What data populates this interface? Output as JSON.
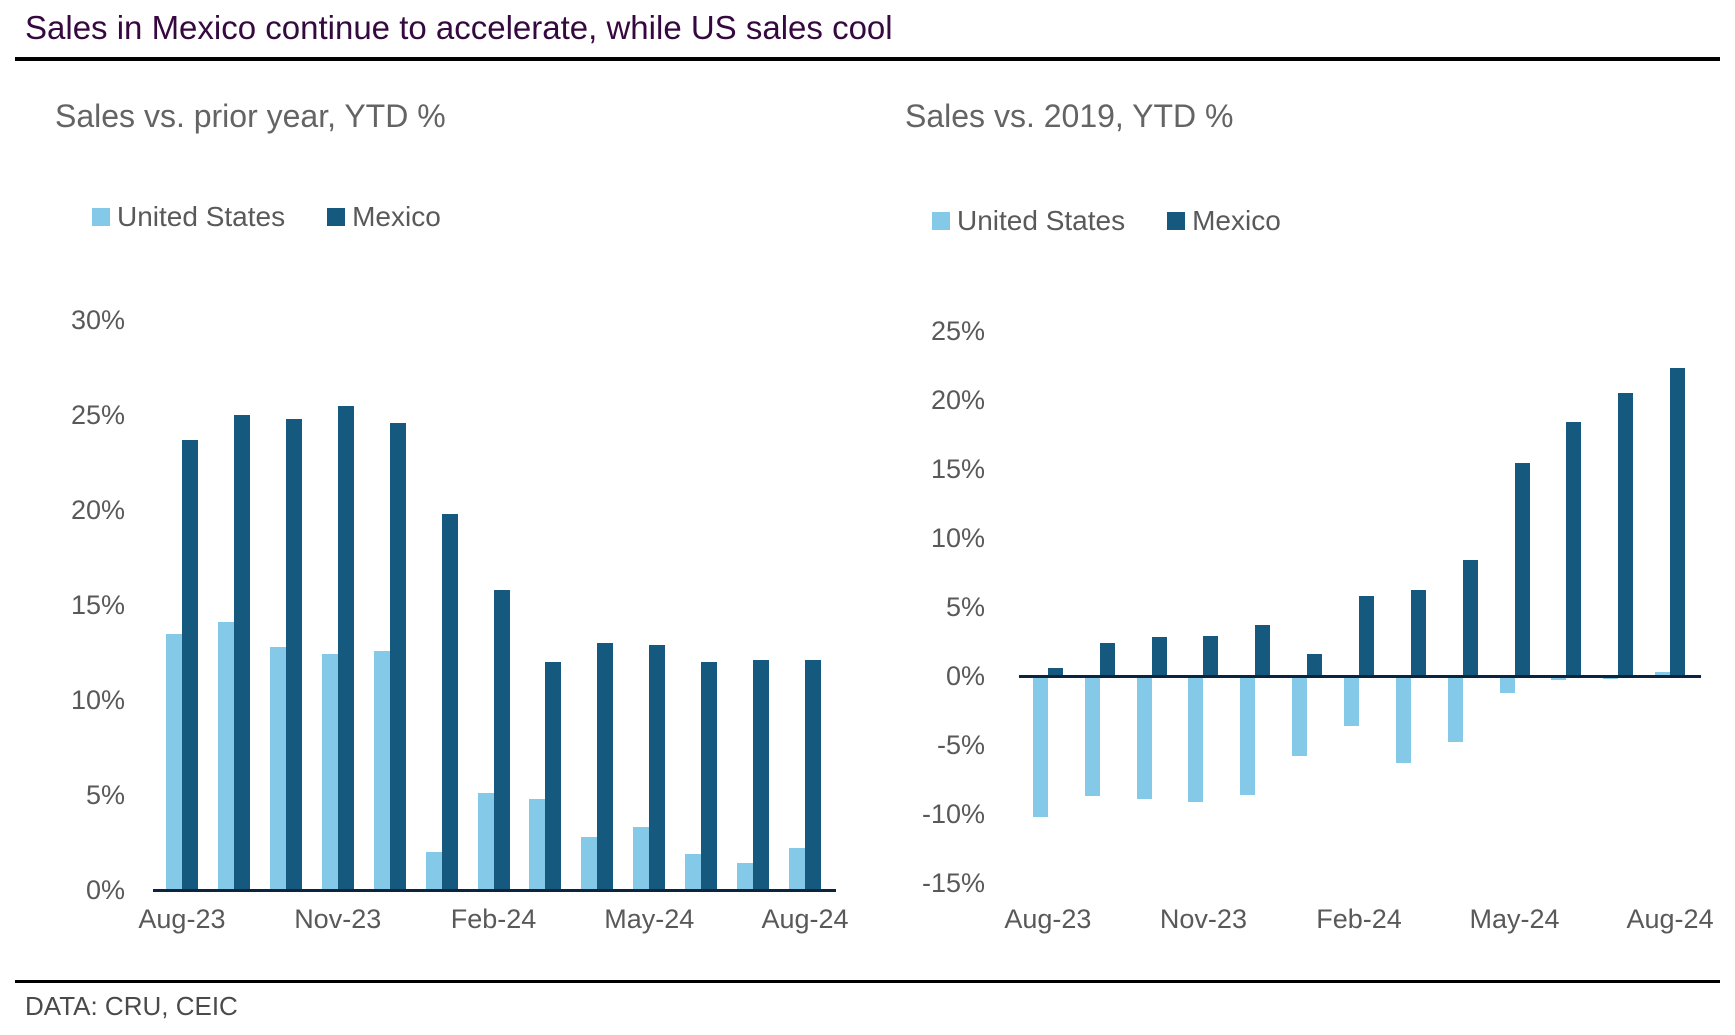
{
  "header": {
    "title": "Sales in Mexico continue to accelerate, while US sales cool"
  },
  "footer": {
    "source": "DATA: CRU, CEIC"
  },
  "colors": {
    "united_states": "#85C9E8",
    "mexico": "#15597E",
    "axis_line": "#0B2440",
    "title_text": "#35083F",
    "gray_text": "#595959"
  },
  "chart_data": [
    {
      "type": "bar",
      "title": "Sales vs. prior year, YTD %",
      "categories": [
        "Aug-23",
        "Sep-23",
        "Oct-23",
        "Nov-23",
        "Dec-23",
        "Jan-24",
        "Feb-24",
        "Mar-24",
        "Apr-24",
        "May-24",
        "Jun-24",
        "Jul-24",
        "Aug-24"
      ],
      "series": [
        {
          "name": "United States",
          "color": "#85C9E8",
          "values": [
            13.5,
            14.1,
            12.8,
            12.4,
            12.6,
            2.0,
            5.1,
            4.8,
            2.8,
            3.3,
            1.9,
            1.4,
            2.2
          ]
        },
        {
          "name": "Mexico",
          "color": "#15597E",
          "values": [
            23.7,
            25.0,
            24.8,
            25.5,
            24.6,
            19.8,
            15.8,
            12.0,
            13.0,
            12.9,
            12.0,
            12.1,
            12.1
          ]
        }
      ],
      "ylim": [
        0,
        30
      ],
      "ytick_step": 5,
      "yticks": [
        {
          "v": 30,
          "label": "30%"
        },
        {
          "v": 25,
          "label": "25%"
        },
        {
          "v": 20,
          "label": "20%"
        },
        {
          "v": 15,
          "label": "15%"
        },
        {
          "v": 10,
          "label": "10%"
        },
        {
          "v": 5,
          "label": "5%"
        },
        {
          "v": 0,
          "label": "0%"
        }
      ],
      "x_ticks": [
        {
          "i": 0,
          "label": "Aug-23"
        },
        {
          "i": 3,
          "label": "Nov-23"
        },
        {
          "i": 6,
          "label": "Feb-24"
        },
        {
          "i": 9,
          "label": "May-24"
        },
        {
          "i": 12,
          "label": "Aug-24"
        }
      ],
      "grid": false,
      "legend_position": "top-left"
    },
    {
      "type": "bar",
      "title": "Sales vs. 2019, YTD %",
      "categories": [
        "Aug-23",
        "Sep-23",
        "Oct-23",
        "Nov-23",
        "Dec-23",
        "Jan-24",
        "Feb-24",
        "Mar-24",
        "Apr-24",
        "May-24",
        "Jun-24",
        "Jul-24",
        "Aug-24"
      ],
      "series": [
        {
          "name": "United States",
          "color": "#85C9E8",
          "values": [
            -10.2,
            -8.7,
            -8.9,
            -9.1,
            -8.6,
            -5.8,
            -3.6,
            -6.3,
            -4.8,
            -1.2,
            -0.3,
            -0.2,
            0.3
          ]
        },
        {
          "name": "Mexico",
          "color": "#15597E",
          "values": [
            0.6,
            2.4,
            2.8,
            2.9,
            3.7,
            1.6,
            5.8,
            6.2,
            8.4,
            15.4,
            18.4,
            20.5,
            22.3
          ]
        }
      ],
      "ylim": [
        -15,
        25
      ],
      "ytick_step": 5,
      "yticks": [
        {
          "v": 25,
          "label": "25%"
        },
        {
          "v": 20,
          "label": "20%"
        },
        {
          "v": 15,
          "label": "15%"
        },
        {
          "v": 10,
          "label": "10%"
        },
        {
          "v": 5,
          "label": "5%"
        },
        {
          "v": 0,
          "label": "0%"
        },
        {
          "v": -5,
          "label": "-5%"
        },
        {
          "v": -10,
          "label": "-10%"
        },
        {
          "v": -15,
          "label": "-15%"
        }
      ],
      "x_ticks": [
        {
          "i": 0,
          "label": "Aug-23"
        },
        {
          "i": 3,
          "label": "Nov-23"
        },
        {
          "i": 6,
          "label": "Feb-24"
        },
        {
          "i": 9,
          "label": "May-24"
        },
        {
          "i": 12,
          "label": "Aug-24"
        }
      ],
      "grid": false,
      "legend_position": "top-left"
    }
  ]
}
